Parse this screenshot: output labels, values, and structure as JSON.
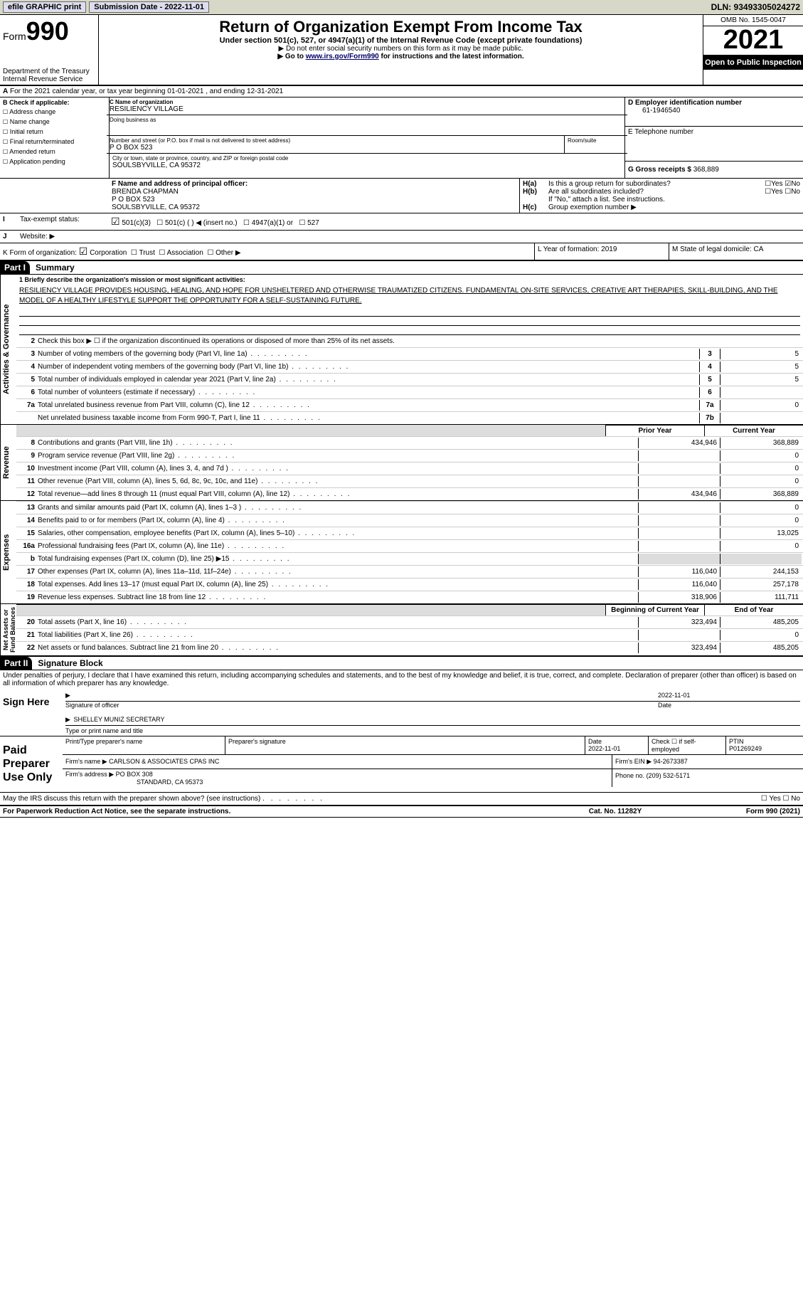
{
  "topbar": {
    "efile": "efile GRAPHIC print",
    "subdate_label": "Submission Date - 2022-11-01",
    "dln": "DLN: 93493305024272"
  },
  "header": {
    "form_prefix": "Form",
    "form_no": "990",
    "dept": "Department of the Treasury",
    "irs": "Internal Revenue Service",
    "title": "Return of Organization Exempt From Income Tax",
    "sub": "Under section 501(c), 527, or 4947(a)(1) of the Internal Revenue Code (except private foundations)",
    "note1": "▶ Do not enter social security numbers on this form as it may be made public.",
    "note2_pre": "▶ Go to ",
    "note2_link": "www.irs.gov/Form990",
    "note2_post": " for instructions and the latest information.",
    "omb": "OMB No. 1545-0047",
    "year": "2021",
    "inspect": "Open to Public Inspection"
  },
  "periodA": "For the 2021 calendar year, or tax year beginning 01-01-2021    , and ending 12-31-2021",
  "boxB": {
    "title": "B Check if applicable:",
    "opts": [
      "Address change",
      "Name change",
      "Initial return",
      "Final return/terminated",
      "Amended return",
      "Application pending"
    ]
  },
  "boxC": {
    "name_label": "C Name of organization",
    "name": "RESILIENCY VILLAGE",
    "dba_label": "Doing business as",
    "addr_label": "Number and street (or P.O. box if mail is not delivered to street address)",
    "room_label": "Room/suite",
    "addr": "P O BOX 523",
    "city_label": "City or town, state or province, country, and ZIP or foreign postal code",
    "city": "SOULSBYVILLE, CA  95372"
  },
  "boxD": {
    "label": "D Employer identification number",
    "ein": "61-1946540"
  },
  "boxE": {
    "label": "E Telephone number"
  },
  "boxG": {
    "label": "G Gross receipts $",
    "val": "368,889"
  },
  "boxF": {
    "label": "F  Name and address of principal officer:",
    "name": "BRENDA CHAPMAN",
    "addr": "P O BOX 523",
    "city": "SOULSBYVILLE, CA  95372"
  },
  "boxH": {
    "a": "Is this a group return for subordinates?",
    "b": "Are all subordinates included?",
    "note": "If \"No,\" attach a list. See instructions.",
    "c": "Group exemption number ▶"
  },
  "taxstatus": {
    "label": "Tax-exempt status:",
    "c3": "501(c)(3)",
    "c": "501(c) (   ) ◀ (insert no.)",
    "a1": "4947(a)(1) or",
    "s527": "527"
  },
  "boxI": {
    "label": "I",
    "text": "Tax-exempt status:"
  },
  "boxJ": {
    "label": "J",
    "text": "Website: ▶"
  },
  "boxK": {
    "text": "K Form of organization:",
    "corp": "Corporation",
    "trust": "Trust",
    "assoc": "Association",
    "other": "Other ▶"
  },
  "boxL": {
    "text": "L Year of formation: 2019"
  },
  "boxM": {
    "text": "M State of legal domicile: CA"
  },
  "part1": {
    "label": "Part I",
    "title": "Summary"
  },
  "mission_label": "1  Briefly describe the organization's mission or most significant activities:",
  "mission": "RESILIENCY VILLAGE PROVIDES HOUSING, HEALING, AND HOPE FOR UNSHELTERED AND OTHERWISE TRAUMATIZED CITIZENS. FUNDAMENTAL ON-SITE SERVICES, CREATIVE ART THERAPIES, SKILL-BUILDING, AND THE MODEL OF A HEALTHY LIFESTYLE SUPPORT THE OPPORTUNITY FOR A SELF-SUSTAINING FUTURE.",
  "gov": {
    "l2": "Check this box ▶ ☐  if the organization discontinued its operations or disposed of more than 25% of its net assets.",
    "lines": [
      {
        "n": "3",
        "t": "Number of voting members of the governing body (Part VI, line 1a)",
        "box": "3",
        "v": "5"
      },
      {
        "n": "4",
        "t": "Number of independent voting members of the governing body (Part VI, line 1b)",
        "box": "4",
        "v": "5"
      },
      {
        "n": "5",
        "t": "Total number of individuals employed in calendar year 2021 (Part V, line 2a)",
        "box": "5",
        "v": "5"
      },
      {
        "n": "6",
        "t": "Total number of volunteers (estimate if necessary)",
        "box": "6",
        "v": ""
      },
      {
        "n": "7a",
        "t": "Total unrelated business revenue from Part VIII, column (C), line 12",
        "box": "7a",
        "v": "0"
      },
      {
        "n": "",
        "t": "Net unrelated business taxable income from Form 990-T, Part I, line 11",
        "box": "7b",
        "v": ""
      }
    ]
  },
  "cols": {
    "prior": "Prior Year",
    "current": "Current Year",
    "bcy": "Beginning of Current Year",
    "eoy": "End of Year"
  },
  "rev": [
    {
      "n": "8",
      "t": "Contributions and grants (Part VIII, line 1h)",
      "p": "434,946",
      "c": "368,889"
    },
    {
      "n": "9",
      "t": "Program service revenue (Part VIII, line 2g)",
      "p": "",
      "c": "0"
    },
    {
      "n": "10",
      "t": "Investment income (Part VIII, column (A), lines 3, 4, and 7d )",
      "p": "",
      "c": "0"
    },
    {
      "n": "11",
      "t": "Other revenue (Part VIII, column (A), lines 5, 6d, 8c, 9c, 10c, and 11e)",
      "p": "",
      "c": "0"
    },
    {
      "n": "12",
      "t": "Total revenue—add lines 8 through 11 (must equal Part VIII, column (A), line 12)",
      "p": "434,946",
      "c": "368,889"
    }
  ],
  "exp": [
    {
      "n": "13",
      "t": "Grants and similar amounts paid (Part IX, column (A), lines 1–3 )",
      "p": "",
      "c": "0"
    },
    {
      "n": "14",
      "t": "Benefits paid to or for members (Part IX, column (A), line 4)",
      "p": "",
      "c": "0"
    },
    {
      "n": "15",
      "t": "Salaries, other compensation, employee benefits (Part IX, column (A), lines 5–10)",
      "p": "",
      "c": "13,025"
    },
    {
      "n": "16a",
      "t": "Professional fundraising fees (Part IX, column (A), line 11e)",
      "p": "",
      "c": "0"
    },
    {
      "n": "b",
      "t": "Total fundraising expenses (Part IX, column (D), line 25) ▶15",
      "p": "grey",
      "c": "grey"
    },
    {
      "n": "17",
      "t": "Other expenses (Part IX, column (A), lines 11a–11d, 11f–24e)",
      "p": "116,040",
      "c": "244,153"
    },
    {
      "n": "18",
      "t": "Total expenses. Add lines 13–17 (must equal Part IX, column (A), line 25)",
      "p": "116,040",
      "c": "257,178"
    },
    {
      "n": "19",
      "t": "Revenue less expenses. Subtract line 18 from line 12",
      "p": "318,906",
      "c": "111,711"
    }
  ],
  "net": [
    {
      "n": "20",
      "t": "Total assets (Part X, line 16)",
      "p": "323,494",
      "c": "485,205"
    },
    {
      "n": "21",
      "t": "Total liabilities (Part X, line 26)",
      "p": "",
      "c": "0"
    },
    {
      "n": "22",
      "t": "Net assets or fund balances. Subtract line 21 from line 20",
      "p": "323,494",
      "c": "485,205"
    }
  ],
  "part2": {
    "label": "Part II",
    "title": "Signature Block"
  },
  "sig": {
    "decl": "Under penalties of perjury, I declare that I have examined this return, including accompanying schedules and statements, and to the best of my knowledge and belief, it is true, correct, and complete. Declaration of preparer (other than officer) is based on all information of which preparer has any knowledge.",
    "sign_here": "Sign Here",
    "sig_officer": "Signature of officer",
    "date": "Date",
    "sig_date": "2022-11-01",
    "name": "SHELLEY MUNIZ  SECRETARY",
    "name_label": "Type or print name and title"
  },
  "paid": {
    "label": "Paid Preparer Use Only",
    "h_name": "Print/Type preparer's name",
    "h_sig": "Preparer's signature",
    "h_date": "Date",
    "date": "2022-11-01",
    "check": "Check ☐ if self-employed",
    "ptin_label": "PTIN",
    "ptin": "P01269249",
    "firm_name_label": "Firm's name    ▶",
    "firm_name": "CARLSON & ASSOCIATES CPAS INC",
    "firm_ein_label": "Firm's EIN ▶",
    "firm_ein": "94-2673387",
    "firm_addr_label": "Firm's address ▶",
    "firm_addr": "PO BOX 308",
    "firm_addr2": "STANDARD, CA  95373",
    "phone_label": "Phone no.",
    "phone": "(209) 532-5171"
  },
  "may": "May the IRS discuss this return with the preparer shown above? (see instructions)",
  "footer": {
    "l": "For Paperwork Reduction Act Notice, see the separate instructions.",
    "m": "Cat. No. 11282Y",
    "r": "Form 990 (2021)"
  }
}
